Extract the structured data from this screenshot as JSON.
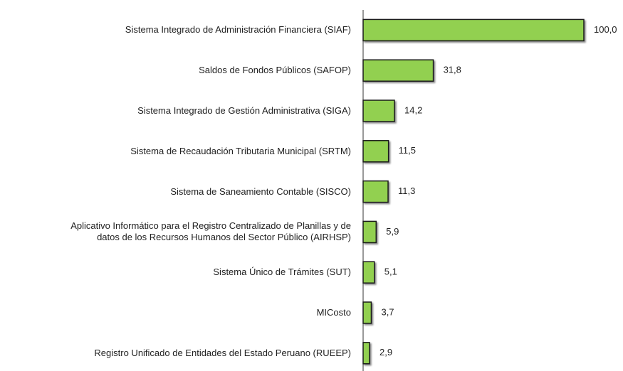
{
  "chart_data": {
    "type": "barh",
    "categories": [
      "Sistema Integrado de Administración Financiera (SIAF)",
      "Saldos de Fondos Públicos (SAFOP)",
      "Sistema Integrado de Gestión Administrativa (SIGA)",
      "Sistema de Recaudación Tributaria Municipal (SRTM)",
      "Sistema de Saneamiento Contable (SISCO)",
      "Aplicativo Informático para el Registro Centralizado de Planillas y de\ndatos de los Recursos Humanos del Sector Público (AIRHSP)",
      "Sistema Único de Trámites (SUT)",
      "MICosto",
      "Registro Unificado de Entidades del Estado Peruano (RUEEP)"
    ],
    "values": [
      100.0,
      31.8,
      14.2,
      11.5,
      11.3,
      5.9,
      5.1,
      3.7,
      2.9
    ],
    "value_labels": [
      "100,0",
      "31,8",
      "14,2",
      "11,5",
      "11,3",
      "5,9",
      "5,1",
      "3,7",
      "2,9"
    ],
    "color": "#92d050"
  }
}
